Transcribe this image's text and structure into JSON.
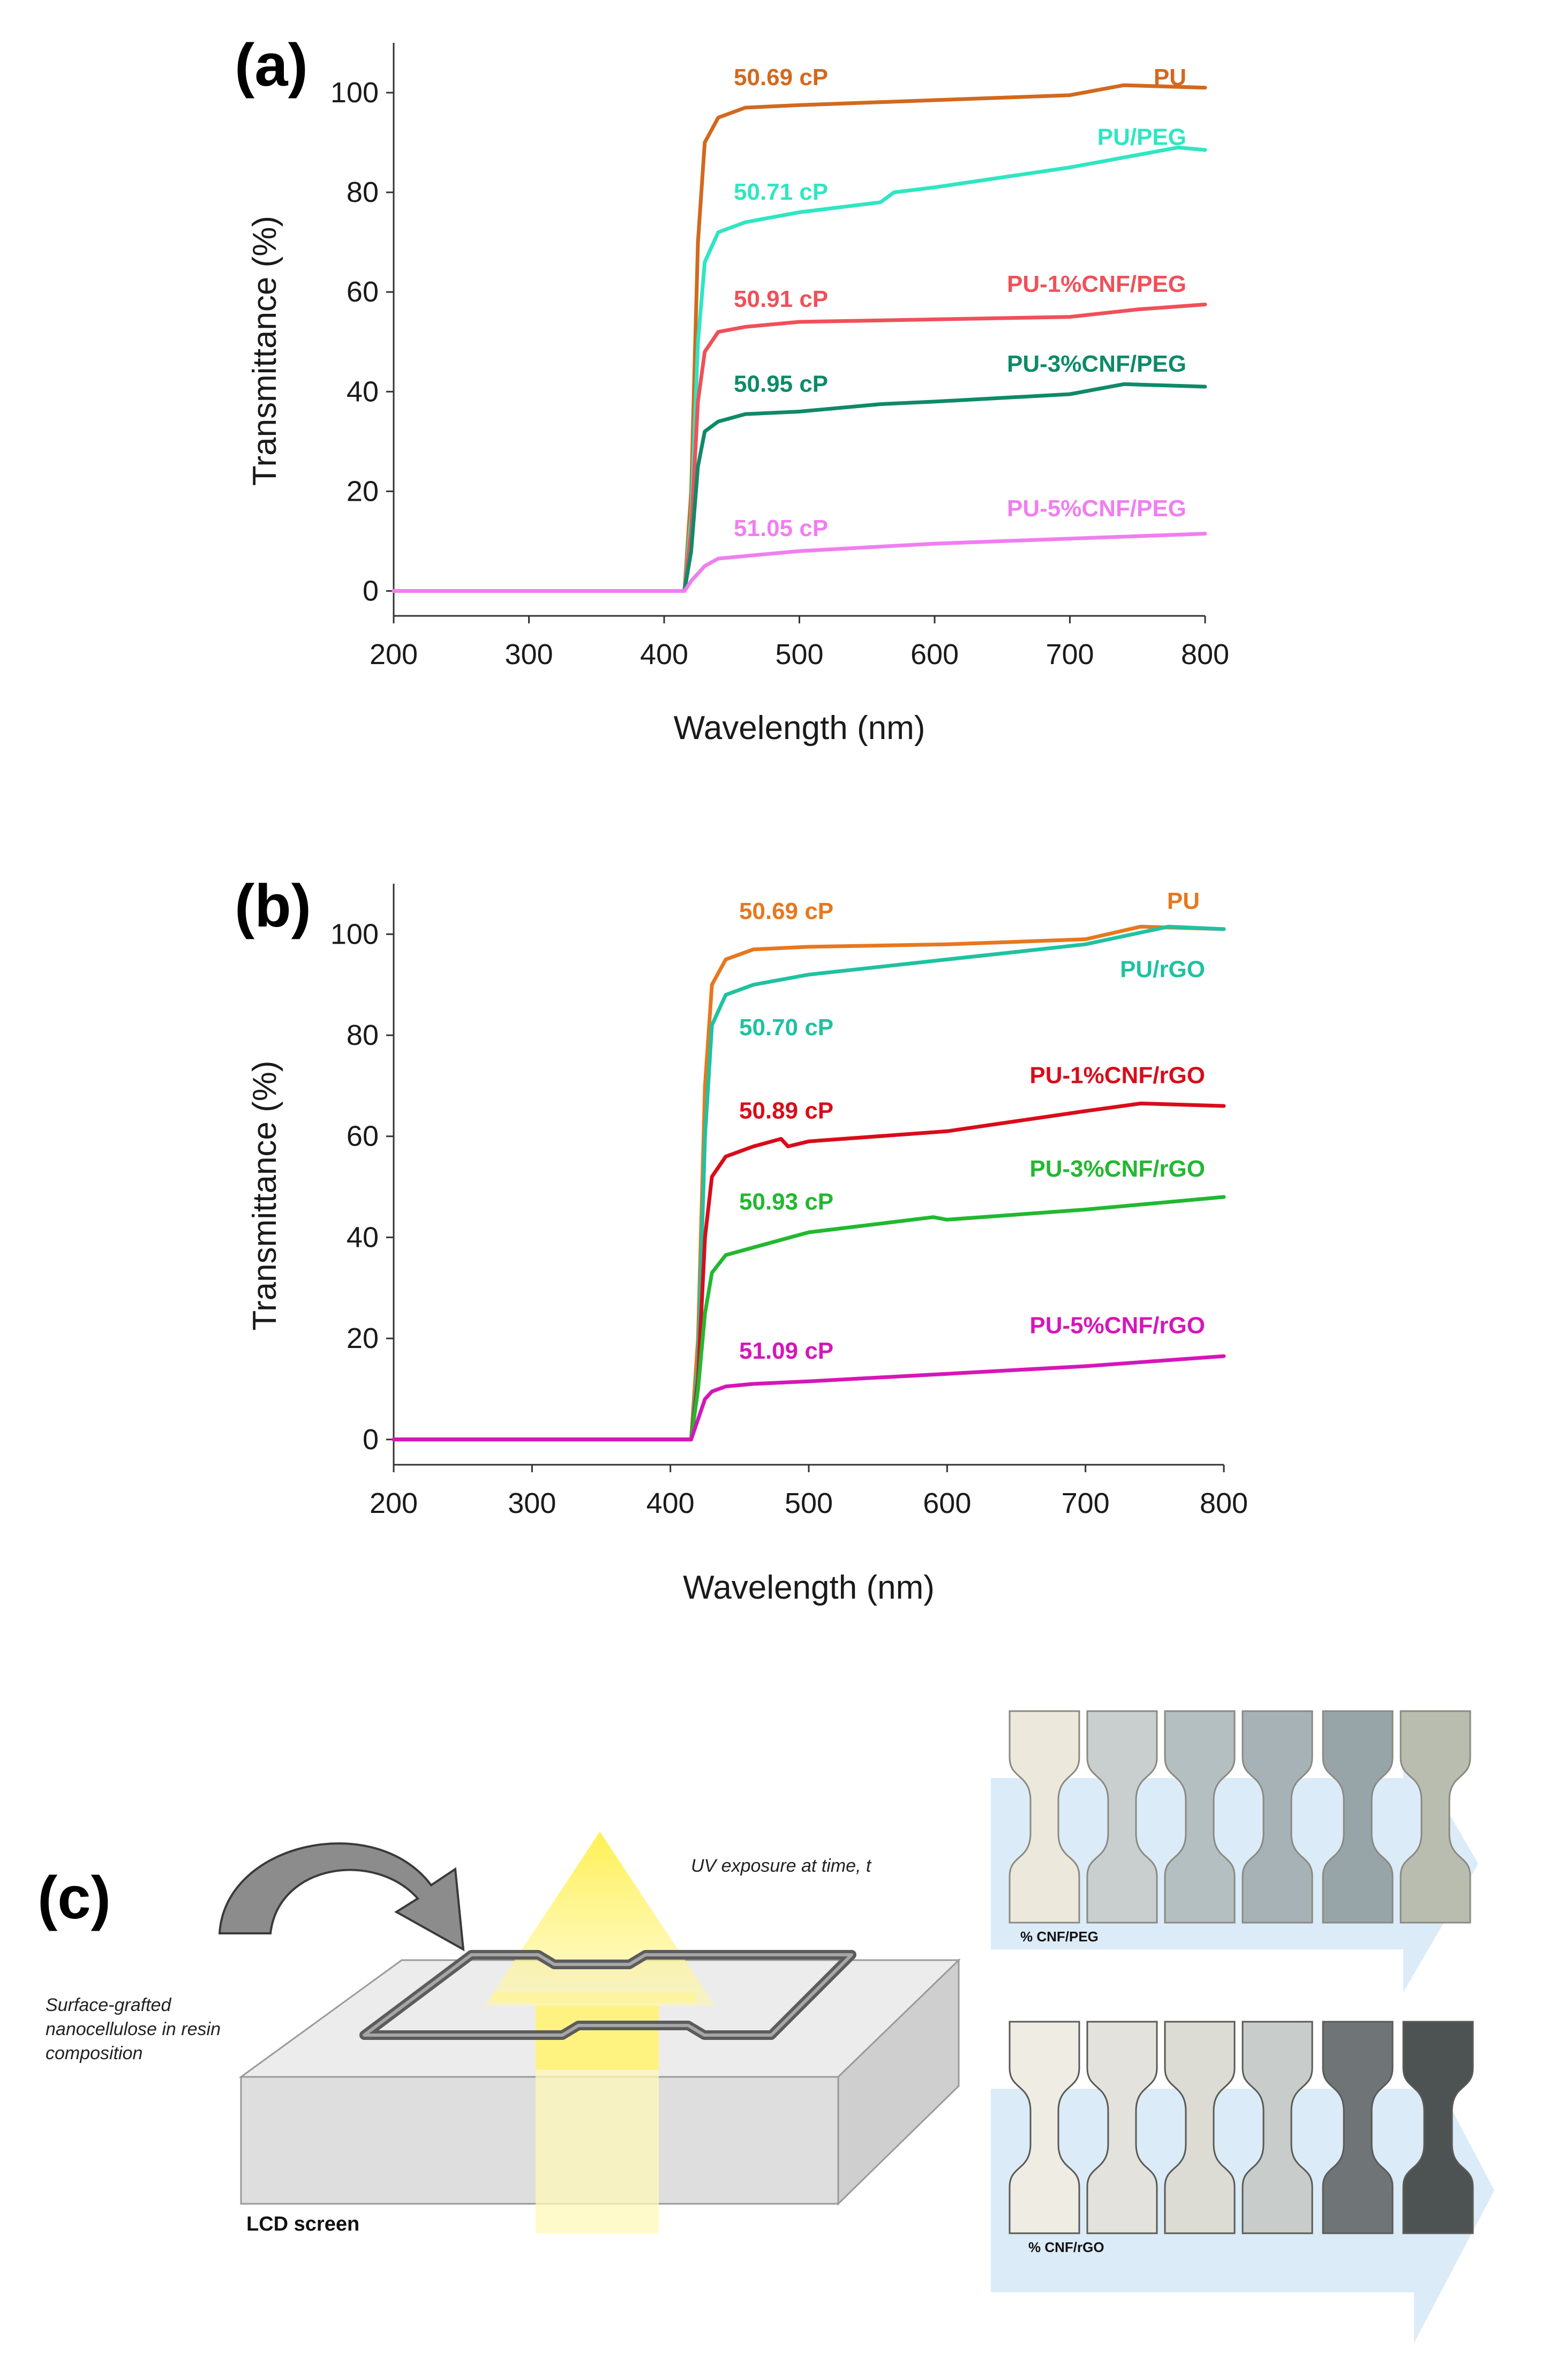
{
  "chart_data": [
    {
      "panel": "(a)",
      "type": "line",
      "xlabel": "Wavelength (nm)",
      "ylabel": "Transmittance (%)",
      "xlim": [
        200,
        800
      ],
      "ylim": [
        -5,
        110
      ],
      "xticks": [
        200,
        300,
        400,
        500,
        600,
        700,
        800
      ],
      "yticks": [
        0,
        20,
        40,
        60,
        80,
        100
      ],
      "series": [
        {
          "name": "PU",
          "viscosity": "50.69 cP",
          "color": "#d2691e",
          "x": [
            200,
            300,
            400,
            415,
            420,
            425,
            430,
            440,
            460,
            500,
            600,
            700,
            740,
            800
          ],
          "y": [
            0,
            0,
            0,
            0,
            20,
            70,
            90,
            95,
            97,
            97.5,
            98.5,
            99.5,
            101.5,
            101
          ]
        },
        {
          "name": "PU/PEG",
          "viscosity": "50.71 cP",
          "color": "#2ee6c2",
          "x": [
            200,
            300,
            400,
            415,
            420,
            425,
            430,
            440,
            460,
            500,
            560,
            570,
            600,
            700,
            780,
            800
          ],
          "y": [
            0,
            0,
            0,
            0,
            15,
            50,
            66,
            72,
            74,
            76,
            78,
            80,
            81,
            85,
            89,
            88.5
          ]
        },
        {
          "name": "PU-1%CNF/PEG",
          "viscosity": "50.91 cP",
          "color": "#f0505a",
          "x": [
            200,
            300,
            400,
            415,
            420,
            425,
            430,
            440,
            460,
            500,
            600,
            700,
            750,
            800
          ],
          "y": [
            0,
            0,
            0,
            0,
            12,
            38,
            48,
            52,
            53,
            54,
            54.5,
            55,
            56.5,
            57.5
          ]
        },
        {
          "name": "PU-3%CNF/PEG",
          "viscosity": "50.95 cP",
          "color": "#0e8a68",
          "x": [
            200,
            300,
            400,
            415,
            420,
            425,
            430,
            440,
            460,
            500,
            560,
            600,
            700,
            740,
            800
          ],
          "y": [
            0,
            0,
            0,
            0,
            8,
            25,
            32,
            34,
            35.5,
            36,
            37.5,
            38,
            39.5,
            41.5,
            41
          ]
        },
        {
          "name": "PU-5%CNF/PEG",
          "viscosity": "51.05 cP",
          "color": "#f07ef0",
          "x": [
            200,
            300,
            400,
            415,
            420,
            430,
            440,
            460,
            500,
            600,
            700,
            800
          ],
          "y": [
            0,
            0,
            0,
            0,
            2,
            5,
            6.5,
            7,
            8,
            9.5,
            10.5,
            11.5
          ]
        }
      ]
    },
    {
      "panel": "(b)",
      "type": "line",
      "xlabel": "Wavelength (nm)",
      "ylabel": "Transmittance (%)",
      "xlim": [
        200,
        800
      ],
      "ylim": [
        -5,
        110
      ],
      "xticks": [
        200,
        300,
        400,
        500,
        600,
        700,
        800
      ],
      "yticks": [
        0,
        20,
        40,
        60,
        80,
        100
      ],
      "series": [
        {
          "name": "PU",
          "viscosity": "50.69 cP",
          "color": "#e8771e",
          "x": [
            200,
            300,
            400,
            415,
            420,
            425,
            430,
            440,
            460,
            500,
            600,
            700,
            740,
            800
          ],
          "y": [
            0,
            0,
            0,
            0,
            20,
            70,
            90,
            95,
            97,
            97.5,
            98,
            99,
            101.5,
            101
          ]
        },
        {
          "name": "PU/rGO",
          "viscosity": "50.70 cP",
          "color": "#1fc2a0",
          "x": [
            200,
            300,
            400,
            415,
            420,
            425,
            430,
            440,
            460,
            500,
            600,
            700,
            760,
            800
          ],
          "y": [
            0,
            0,
            0,
            0,
            15,
            60,
            82,
            88,
            90,
            92,
            95,
            98,
            101.5,
            101
          ]
        },
        {
          "name": "PU-1%CNF/rGO",
          "viscosity": "50.89 cP",
          "color": "#d90c1a",
          "x": [
            200,
            300,
            400,
            415,
            420,
            425,
            430,
            440,
            460,
            480,
            485,
            500,
            600,
            700,
            740,
            800
          ],
          "y": [
            0,
            0,
            0,
            0,
            12,
            40,
            52,
            56,
            58,
            59.5,
            58,
            59,
            61,
            65,
            66.5,
            66
          ]
        },
        {
          "name": "PU-3%CNF/rGO",
          "viscosity": "50.93 cP",
          "color": "#22b830",
          "x": [
            200,
            300,
            400,
            415,
            420,
            425,
            430,
            440,
            460,
            500,
            590,
            600,
            700,
            800
          ],
          "y": [
            0,
            0,
            0,
            0,
            10,
            25,
            33,
            36.5,
            38,
            41,
            44,
            43.5,
            45.5,
            48
          ]
        },
        {
          "name": "PU-5%CNF/rGO",
          "viscosity": "51.09 cP",
          "color": "#d616b8",
          "x": [
            200,
            300,
            400,
            415,
            420,
            425,
            430,
            440,
            460,
            500,
            600,
            700,
            800
          ],
          "y": [
            0,
            0,
            0,
            0,
            4,
            8,
            9.5,
            10.5,
            11,
            11.5,
            13,
            14.5,
            16.5
          ]
        }
      ]
    }
  ],
  "panels": {
    "a_letter": "(a)",
    "b_letter": "(b)",
    "c_letter": "(c)"
  },
  "diagram": {
    "uv_label": "UV exposure at time, t",
    "resin_label_line1": "Surface-grafted",
    "resin_label_line2": "nanocellulose in resin",
    "resin_label_line3": "composition",
    "lcd_label": "LCD screen",
    "strips_top_caption": "% CNF/PEG",
    "strips_bottom_caption": "% CNF/rGO",
    "colors": {
      "uv_arrow": "#fff06a",
      "strip_arrow": "#cfe4f5",
      "slab_top": "#ececec",
      "slab_side": "#d6d6d6"
    }
  }
}
